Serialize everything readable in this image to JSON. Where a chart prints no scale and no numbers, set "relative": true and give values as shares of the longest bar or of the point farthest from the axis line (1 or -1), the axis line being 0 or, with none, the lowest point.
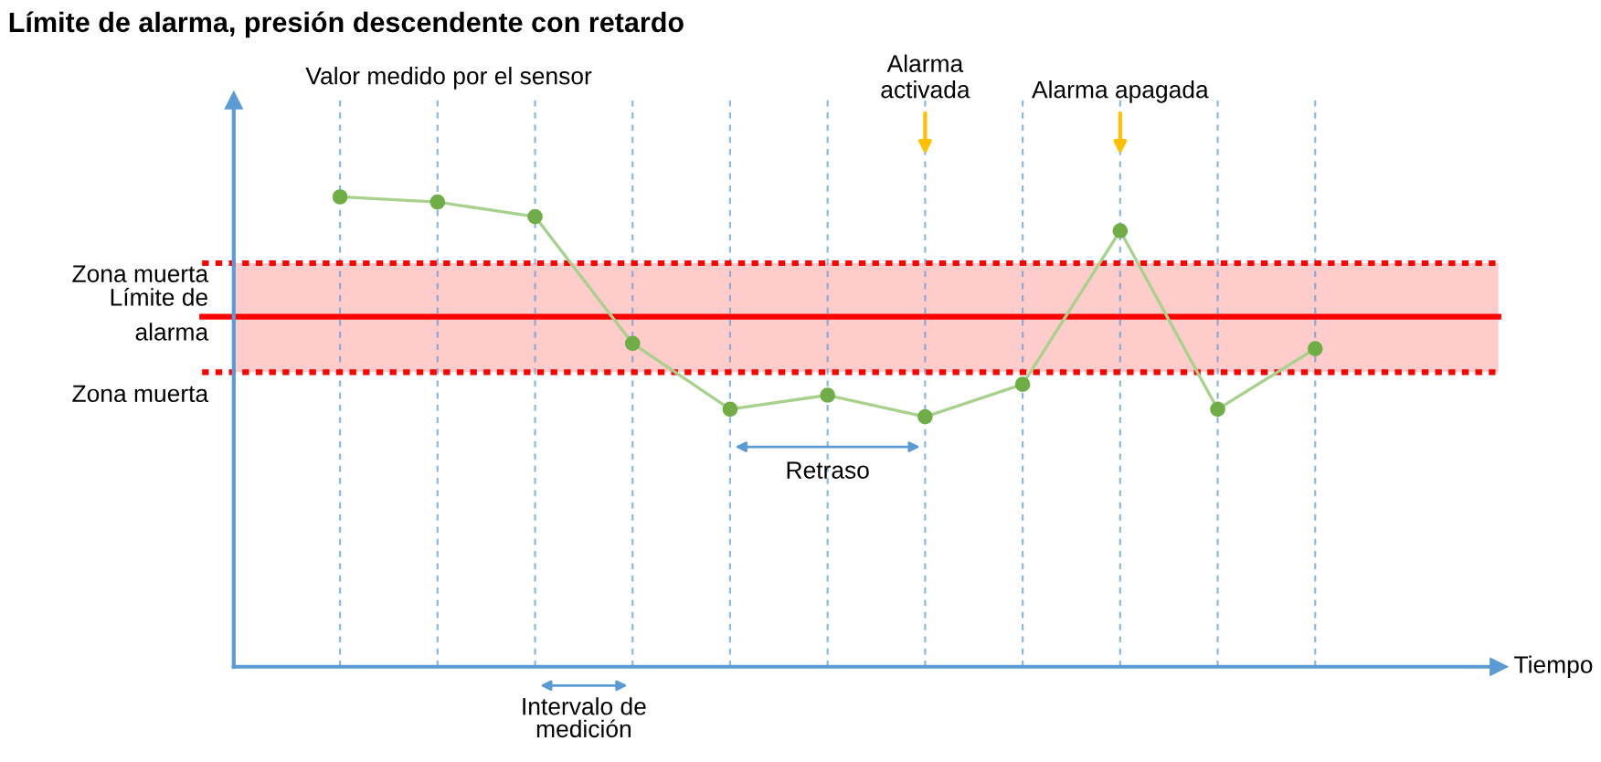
{
  "chart_data": {
    "type": "line",
    "relative": true,
    "title": "Límite de alarma, presión descendente con retardo",
    "ylabel": "Valor medido por el sensor",
    "categories": [
      null,
      null,
      null,
      null,
      null,
      null,
      null,
      null,
      null,
      null,
      null
    ],
    "series": [
      {
        "color": "#a9d18e",
        "values": [
          1.0,
          0.989,
          0.958,
          0.688,
          0.548,
          0.578,
          0.532,
          0.601,
          0.928,
          0.548,
          0.677
        ]
      }
    ],
    "marker": "circle",
    "line_style": "solid",
    "grid": "x",
    "ref_lines": [
      {
        "axis": "y",
        "value": 0.745,
        "label": "Límite de\nalarma",
        "color": "#ff0000",
        "line_style": "solid"
      },
      {
        "axis": "y",
        "value": 0.859,
        "color": "#ff0000",
        "line_style": "dotted"
      },
      {
        "axis": "y",
        "value": 0.627,
        "color": "#ff0000",
        "line_style": "dotted"
      }
    ],
    "bands": [
      {
        "axis": "y",
        "from": 0.745,
        "to": 0.859,
        "label": "Zona muerta",
        "color": "#ffcccc"
      },
      {
        "axis": "y",
        "from": 0.627,
        "to": 0.745,
        "label": "Zona muerta",
        "color": "#ffcccc"
      }
    ],
    "annotations": [
      "Alarma\nactivada",
      "Alarma apagada",
      "Retraso",
      "Intervalo de\nmedición",
      "Tiempo"
    ]
  }
}
